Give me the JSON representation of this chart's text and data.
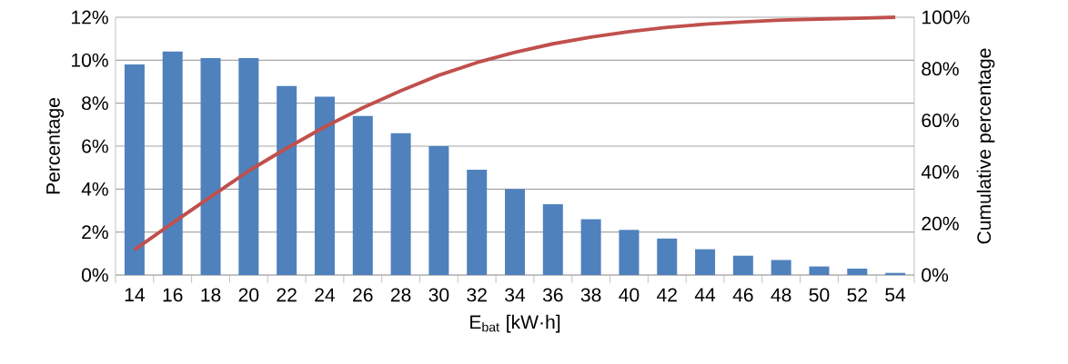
{
  "chart_data": {
    "type": "bar",
    "xlabel": "E$_{bat}$ [kW·h]",
    "ylabel": "Percentage",
    "y2label": "Cumulative percentage",
    "categories": [
      "14",
      "16",
      "18",
      "20",
      "22",
      "24",
      "26",
      "28",
      "30",
      "32",
      "34",
      "36",
      "38",
      "40",
      "42",
      "44",
      "46",
      "48",
      "50",
      "52",
      "54"
    ],
    "series": [
      {
        "color": "#4f81bd",
        "values": [
          9.8,
          10.4,
          10.1,
          10.1,
          8.8,
          8.3,
          7.4,
          6.6,
          6.0,
          4.9,
          4.0,
          3.3,
          2.6,
          2.1,
          1.7,
          1.2,
          0.9,
          0.7,
          0.4,
          0.3,
          0.1
        ]
      },
      {
        "type": "line",
        "axis": "y2",
        "color": "#c0504d",
        "values": [
          9.8,
          20.2,
          30.3,
          40.4,
          49.2,
          57.5,
          64.9,
          71.5,
          77.5,
          82.4,
          86.4,
          89.7,
          92.3,
          94.4,
          96.1,
          97.3,
          98.2,
          98.9,
          99.3,
          99.6,
          100
        ]
      }
    ],
    "ylim": [
      0,
      12
    ],
    "yticks": [
      {
        "value": 0,
        "label": "0%"
      },
      {
        "value": 2,
        "label": "2%"
      },
      {
        "value": 4,
        "label": "4%"
      },
      {
        "value": 6,
        "label": "6%"
      },
      {
        "value": 8,
        "label": "8%"
      },
      {
        "value": 10,
        "label": "10%"
      },
      {
        "value": 12,
        "label": "12%"
      }
    ],
    "y2lim": [
      0,
      100
    ],
    "y2ticks": [
      {
        "value": 0,
        "label": "0%"
      },
      {
        "value": 20,
        "label": "20%"
      },
      {
        "value": 40,
        "label": "40%"
      },
      {
        "value": 60,
        "label": "60%"
      },
      {
        "value": 80,
        "label": "80%"
      },
      {
        "value": 100,
        "label": "100%"
      }
    ],
    "grid": "y",
    "marker": "none"
  }
}
